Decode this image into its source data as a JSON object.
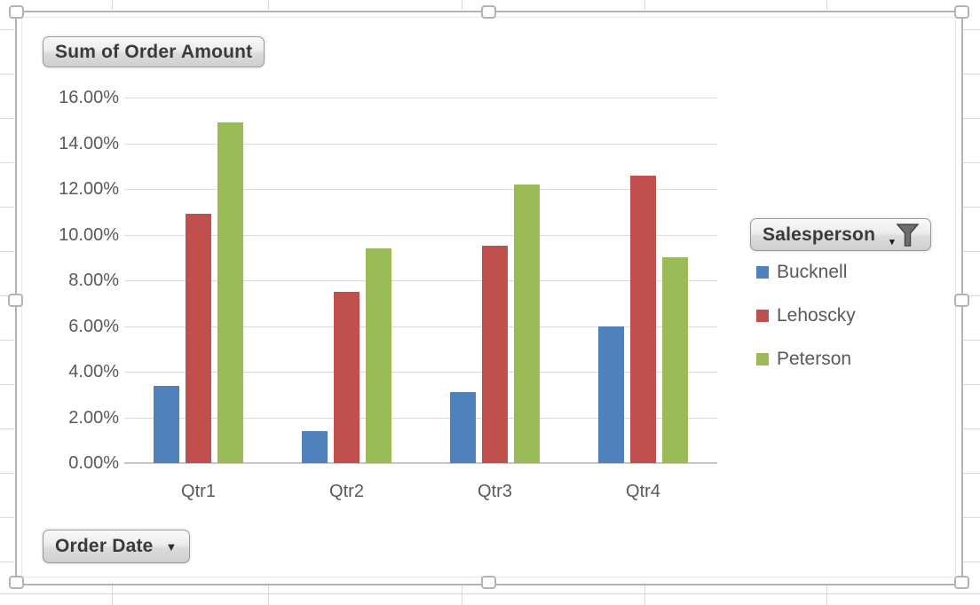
{
  "chart_data": {
    "type": "bar",
    "title": "Sum of Order Amount",
    "categories": [
      "Qtr1",
      "Qtr2",
      "Qtr3",
      "Qtr4"
    ],
    "series": [
      {
        "name": "Bucknell",
        "color": "#4F81BD",
        "values": [
          3.4,
          1.4,
          3.1,
          6.0
        ]
      },
      {
        "name": "Lehoscky",
        "color": "#C0504D",
        "values": [
          10.9,
          7.5,
          9.5,
          12.6
        ]
      },
      {
        "name": "Peterson",
        "color": "#9BBB59",
        "values": [
          14.9,
          9.4,
          12.2,
          9.0
        ]
      }
    ],
    "values_unit": "%",
    "ylim": [
      0,
      16
    ],
    "ytick_step": 2,
    "ytick_labels": [
      "16.00%",
      "14.00%",
      "12.00%",
      "10.00%",
      "8.00%",
      "6.00%",
      "4.00%",
      "2.00%",
      "0.00%"
    ],
    "grid": true,
    "legend_position": "right"
  },
  "pivot_buttons": {
    "value_button": "Sum of Order Amount",
    "legend_button": "Salesperson",
    "axis_button": "Order Date",
    "dropdown_glyph": "▼",
    "mini_arrow_glyph": "▾"
  },
  "legend": {
    "title": "Salesperson",
    "items": [
      {
        "label": "Bucknell",
        "color": "#4F81BD"
      },
      {
        "label": "Lehoscky",
        "color": "#C0504D"
      },
      {
        "label": "Peterson",
        "color": "#9BBB59"
      }
    ]
  }
}
